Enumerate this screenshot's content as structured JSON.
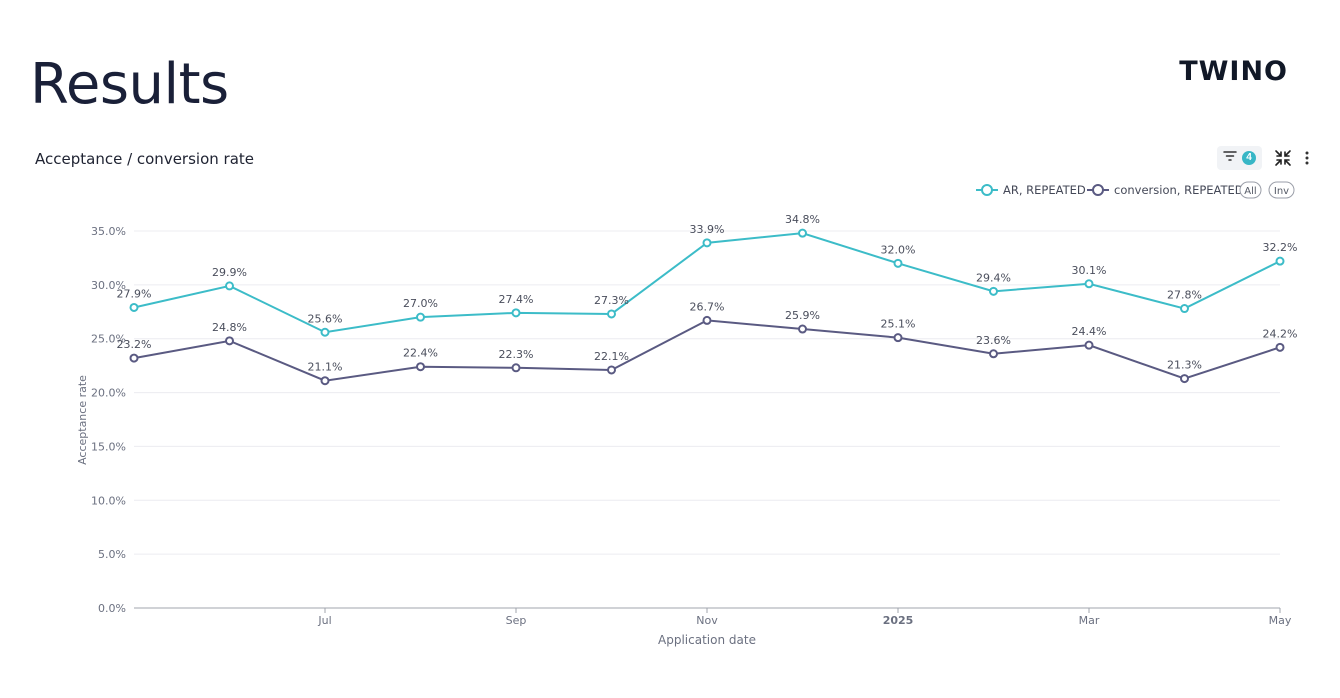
{
  "page": {
    "title": "Results",
    "brand": "TWINO"
  },
  "panel": {
    "title": "Acceptance / conversion rate",
    "filter_count": "4",
    "legend_all": "All",
    "legend_inv": "Inv"
  },
  "icons": {
    "filter": "filter-icon",
    "collapse": "collapse-icon",
    "more": "more-vertical-icon"
  },
  "colors": {
    "ar": "#3cbcc8",
    "conversion": "#5a5a82",
    "grid": "#ececf0",
    "axis": "#a0a4ad"
  },
  "chart_data": {
    "type": "line",
    "title": "Acceptance / conversion rate",
    "xlabel": "Application date",
    "ylabel": "Acceptance rate",
    "ylim": [
      0,
      35
    ],
    "y_ticks": [
      "0.0%",
      "5.0%",
      "10.0%",
      "15.0%",
      "20.0%",
      "25.0%",
      "30.0%",
      "35.0%"
    ],
    "x_ticks": [
      {
        "index": 2,
        "label": "Jul",
        "bold": false
      },
      {
        "index": 4,
        "label": "Sep",
        "bold": false
      },
      {
        "index": 6,
        "label": "Nov",
        "bold": false
      },
      {
        "index": 8,
        "label": "2025",
        "bold": true
      },
      {
        "index": 10,
        "label": "Mar",
        "bold": false
      },
      {
        "index": 12,
        "label": "May",
        "bold": false
      }
    ],
    "x": [
      "2024-05",
      "2024-06",
      "2024-07",
      "2024-08",
      "2024-09",
      "2024-10",
      "2024-11",
      "2024-12",
      "2025-01",
      "2025-02",
      "2025-03",
      "2025-04",
      "2025-05"
    ],
    "series": [
      {
        "name": "AR, REPEATED",
        "color": "#3cbcc8",
        "values": [
          27.9,
          29.9,
          25.6,
          27.0,
          27.4,
          27.3,
          33.9,
          34.8,
          32.0,
          29.4,
          30.1,
          27.8,
          32.2
        ],
        "labels": [
          "27.9%",
          "29.9%",
          "25.6%",
          "27.0%",
          "27.4%",
          "27.3%",
          "33.9%",
          "34.8%",
          "32.0%",
          "29.4%",
          "30.1%",
          "27.8%",
          "32.2%"
        ]
      },
      {
        "name": "conversion, REPEATED",
        "color": "#5a5a82",
        "values": [
          23.2,
          24.8,
          21.1,
          22.4,
          22.3,
          22.1,
          26.7,
          25.9,
          25.1,
          23.6,
          24.4,
          21.3,
          24.2
        ],
        "labels": [
          "23.2%",
          "24.8%",
          "21.1%",
          "22.4%",
          "22.3%",
          "22.1%",
          "26.7%",
          "25.9%",
          "25.1%",
          "23.6%",
          "24.4%",
          "21.3%",
          "24.2%"
        ]
      }
    ],
    "legend": "top-right",
    "grid": true
  }
}
